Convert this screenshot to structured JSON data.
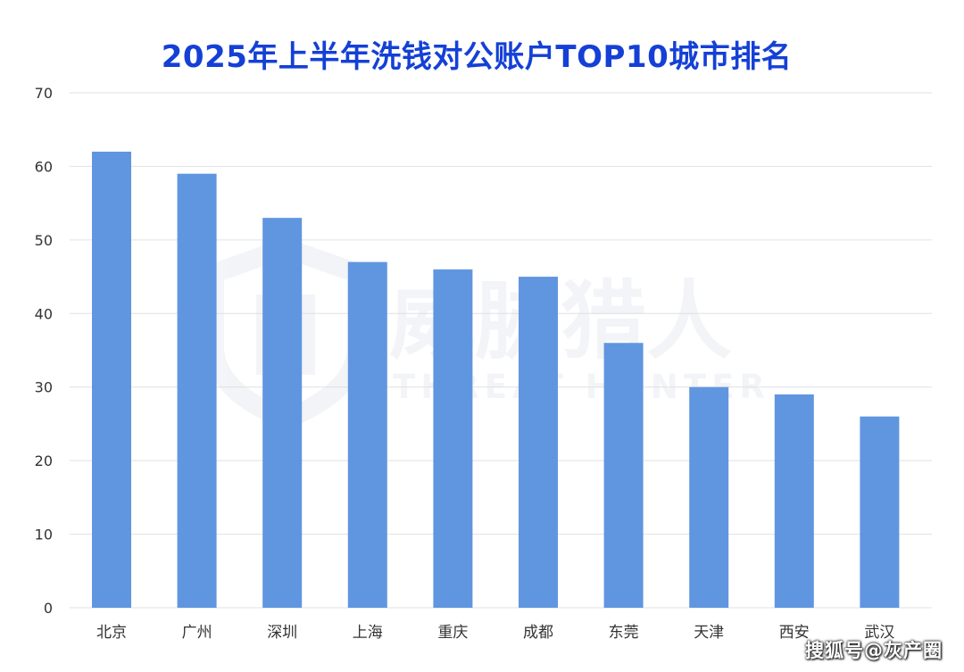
{
  "chart_data": {
    "type": "bar",
    "title": "2025年上半年洗钱对公账户TOP10城市排名",
    "categories": [
      "北京",
      "广州",
      "深圳",
      "上海",
      "重庆",
      "成都",
      "东莞",
      "天津",
      "西安",
      "武汉"
    ],
    "values": [
      62,
      59,
      53,
      47,
      46,
      45,
      36,
      30,
      29,
      26
    ],
    "ylim": [
      0,
      70
    ],
    "yticks": [
      0,
      10,
      20,
      30,
      40,
      50,
      60,
      70
    ],
    "xlabel": "",
    "ylabel": "",
    "grid": true,
    "legend": "none",
    "bar_color": "#6096e0",
    "grid_color": "#e0e0e0",
    "title_color": "#1440d6"
  },
  "watermark": {
    "brand_cn": "威胁猎人",
    "brand_en": "THREAT HUNTER",
    "icon": "shield-logo-icon"
  },
  "source": "搜狐号@灰产圈"
}
